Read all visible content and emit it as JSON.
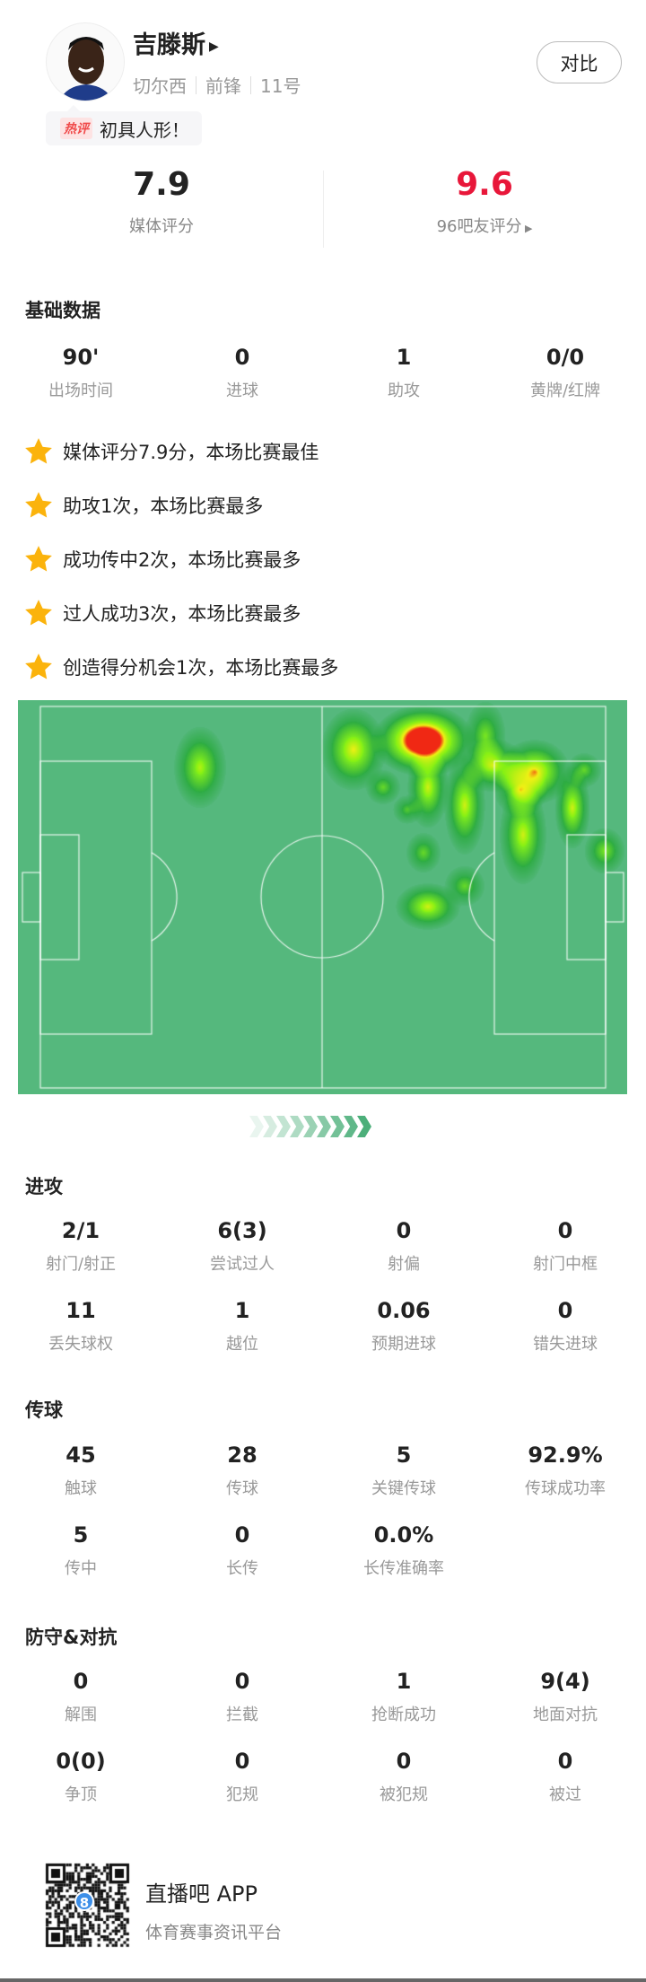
{
  "player": {
    "name": "吉滕斯",
    "team": "切尔西",
    "position": "前锋",
    "number": "11号",
    "compare_label": "对比",
    "hot_tag": "热评",
    "hot_comment": "初具人形！"
  },
  "ratings": {
    "media_score": "7.9",
    "media_label": "媒体评分",
    "fan_score": "9.6",
    "fan_label": "96吧友评分",
    "fan_color": "#e8173a"
  },
  "basic": {
    "title": "基础数据",
    "items": [
      {
        "v": "90'",
        "l": "出场时间"
      },
      {
        "v": "0",
        "l": "进球"
      },
      {
        "v": "1",
        "l": "助攻"
      },
      {
        "v": "0/0",
        "l": "黄牌/红牌"
      }
    ]
  },
  "highlights": [
    "媒体评分7.9分，本场比赛最佳",
    "助攻1次，本场比赛最多",
    "成功传中2次，本场比赛最多",
    "过人成功3次，本场比赛最多",
    "创造得分机会1次，本场比赛最多"
  ],
  "attack": {
    "title": "进攻",
    "items": [
      {
        "v": "2/1",
        "l": "射门/射正"
      },
      {
        "v": "6(3)",
        "l": "尝试过人"
      },
      {
        "v": "0",
        "l": "射偏"
      },
      {
        "v": "0",
        "l": "射门中框"
      },
      {
        "v": "11",
        "l": "丢失球权"
      },
      {
        "v": "1",
        "l": "越位"
      },
      {
        "v": "0.06",
        "l": "预期进球"
      },
      {
        "v": "0",
        "l": "错失进球"
      }
    ]
  },
  "passing": {
    "title": "传球",
    "items": [
      {
        "v": "45",
        "l": "触球"
      },
      {
        "v": "28",
        "l": "传球"
      },
      {
        "v": "5",
        "l": "关键传球"
      },
      {
        "v": "92.9%",
        "l": "传球成功率"
      },
      {
        "v": "5",
        "l": "传中"
      },
      {
        "v": "0",
        "l": "长传"
      },
      {
        "v": "0.0%",
        "l": "长传准确率"
      }
    ]
  },
  "defense": {
    "title": "防守&对抗",
    "items": [
      {
        "v": "0",
        "l": "解围"
      },
      {
        "v": "0",
        "l": "拦截"
      },
      {
        "v": "1",
        "l": "抢断成功"
      },
      {
        "v": "9(4)",
        "l": "地面对抗"
      },
      {
        "v": "0(0)",
        "l": "争顶"
      },
      {
        "v": "0",
        "l": "犯规"
      },
      {
        "v": "0",
        "l": "被犯规"
      },
      {
        "v": "0",
        "l": "被过"
      }
    ]
  },
  "footer": {
    "app_name": "直播吧 APP",
    "app_desc": "体育赛事资讯平台",
    "qr_logo": "8"
  },
  "colors": {
    "pitch": "#55b87d",
    "star": "#fbb30c",
    "arrow": "#4caf7a"
  }
}
